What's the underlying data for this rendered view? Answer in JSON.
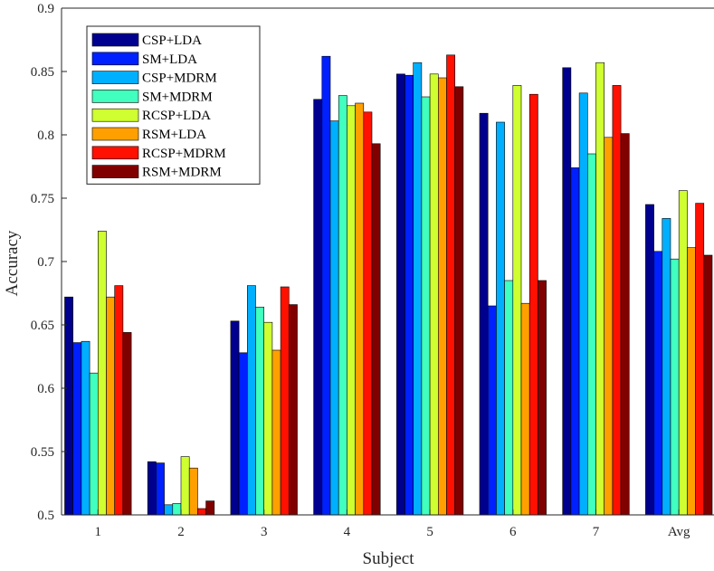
{
  "chart_data": {
    "type": "bar",
    "title": "",
    "xlabel": "Subject",
    "ylabel": "Accuracy",
    "ylim": [
      0.5,
      0.9
    ],
    "yticks": [
      0.5,
      0.55,
      0.6,
      0.65,
      0.7,
      0.75,
      0.8,
      0.85,
      0.9
    ],
    "ytick_labels": [
      "0.5",
      "0.55",
      "0.6",
      "0.65",
      "0.7",
      "0.75",
      "0.8",
      "0.85",
      "0.9"
    ],
    "categories": [
      "1",
      "2",
      "3",
      "4",
      "5",
      "6",
      "7",
      "Avg"
    ],
    "legend_position": "top-left",
    "grid": false,
    "series": [
      {
        "name": "CSP+LDA",
        "color": "#00008F",
        "values": [
          0.672,
          0.542,
          0.653,
          0.828,
          0.848,
          0.817,
          0.853,
          0.745
        ]
      },
      {
        "name": "SM+LDA",
        "color": "#0020FF",
        "values": [
          0.636,
          0.541,
          0.628,
          0.862,
          0.847,
          0.665,
          0.774,
          0.708
        ]
      },
      {
        "name": "CSP+MDRM",
        "color": "#00AFFF",
        "values": [
          0.637,
          0.508,
          0.681,
          0.811,
          0.857,
          0.81,
          0.833,
          0.734
        ]
      },
      {
        "name": "SM+MDRM",
        "color": "#40FFBF",
        "values": [
          0.612,
          0.509,
          0.664,
          0.831,
          0.83,
          0.685,
          0.785,
          0.702
        ]
      },
      {
        "name": "RCSP+LDA",
        "color": "#CFFF30",
        "values": [
          0.724,
          0.546,
          0.652,
          0.823,
          0.848,
          0.839,
          0.857,
          0.756
        ]
      },
      {
        "name": "RSM+LDA",
        "color": "#FFA000",
        "values": [
          0.672,
          0.537,
          0.63,
          0.825,
          0.845,
          0.667,
          0.798,
          0.711
        ]
      },
      {
        "name": "RCSP+MDRM",
        "color": "#FF1000",
        "values": [
          0.681,
          0.505,
          0.68,
          0.818,
          0.863,
          0.832,
          0.839,
          0.746
        ]
      },
      {
        "name": "RSM+MDRM",
        "color": "#800000",
        "values": [
          0.644,
          0.511,
          0.666,
          0.793,
          0.838,
          0.685,
          0.801,
          0.705
        ]
      }
    ]
  }
}
